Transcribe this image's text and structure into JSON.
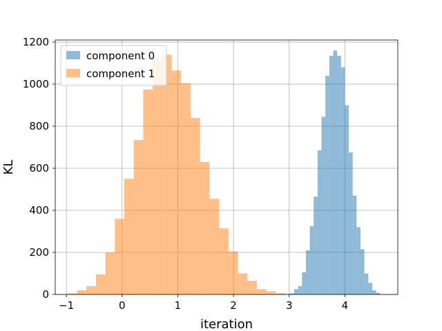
{
  "chart_data": {
    "type": "histogram",
    "title": "",
    "xlabel": "iteration",
    "ylabel": "KL",
    "xlim": [
      -1.2,
      4.95
    ],
    "ylim": [
      0,
      1210
    ],
    "xticks": [
      -1,
      0,
      1,
      2,
      3,
      4
    ],
    "yticks": [
      0,
      200,
      400,
      600,
      800,
      1000,
      1200
    ],
    "grid": true,
    "legend": "upper left",
    "series": [
      {
        "name": "component 0",
        "color": "#1f77b4",
        "alpha": 0.5,
        "bins": [
          [
            3.01,
            3.09,
            5
          ],
          [
            3.09,
            3.16,
            25
          ],
          [
            3.16,
            3.23,
            40
          ],
          [
            3.23,
            3.3,
            105
          ],
          [
            3.3,
            3.37,
            210
          ],
          [
            3.37,
            3.44,
            325
          ],
          [
            3.44,
            3.51,
            465
          ],
          [
            3.51,
            3.58,
            685
          ],
          [
            3.58,
            3.65,
            845
          ],
          [
            3.65,
            3.72,
            1040
          ],
          [
            3.72,
            3.79,
            1135
          ],
          [
            3.79,
            3.86,
            1160
          ],
          [
            3.86,
            3.93,
            1135
          ],
          [
            3.93,
            4.0,
            1080
          ],
          [
            4.0,
            4.07,
            900
          ],
          [
            4.07,
            4.14,
            675
          ],
          [
            4.14,
            4.21,
            470
          ],
          [
            4.21,
            4.28,
            320
          ],
          [
            4.28,
            4.35,
            215
          ],
          [
            4.35,
            4.42,
            100
          ],
          [
            4.42,
            4.49,
            55
          ],
          [
            4.49,
            4.56,
            20
          ],
          [
            4.56,
            4.63,
            8
          ]
        ]
      },
      {
        "name": "component 1",
        "color": "#ff7f0e",
        "alpha": 0.5,
        "bins": [
          [
            -0.98,
            -0.81,
            5
          ],
          [
            -0.81,
            -0.64,
            20
          ],
          [
            -0.64,
            -0.47,
            40
          ],
          [
            -0.47,
            -0.3,
            95
          ],
          [
            -0.3,
            -0.13,
            200
          ],
          [
            -0.13,
            0.04,
            360
          ],
          [
            0.04,
            0.21,
            550
          ],
          [
            0.21,
            0.38,
            735
          ],
          [
            0.38,
            0.55,
            975
          ],
          [
            0.55,
            0.72,
            1120
          ],
          [
            0.72,
            0.89,
            1140
          ],
          [
            0.89,
            1.06,
            1065
          ],
          [
            1.06,
            1.23,
            1005
          ],
          [
            1.23,
            1.4,
            840
          ],
          [
            1.4,
            1.57,
            630
          ],
          [
            1.57,
            1.74,
            455
          ],
          [
            1.74,
            1.91,
            315
          ],
          [
            1.91,
            2.08,
            205
          ],
          [
            2.08,
            2.25,
            100
          ],
          [
            2.25,
            2.42,
            65
          ],
          [
            2.42,
            2.59,
            25
          ],
          [
            2.59,
            2.76,
            15
          ],
          [
            2.76,
            2.93,
            6
          ]
        ]
      }
    ]
  }
}
